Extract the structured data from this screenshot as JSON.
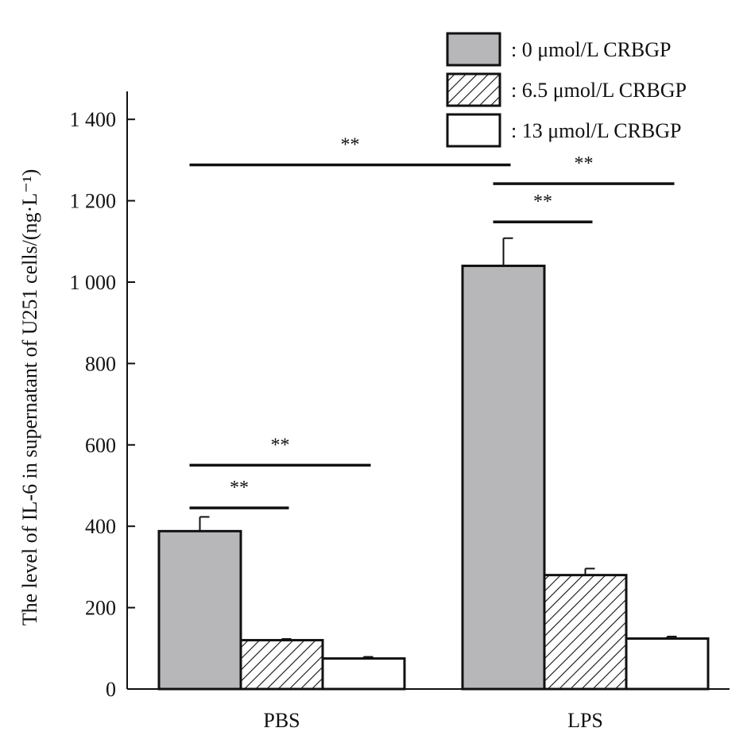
{
  "chart_data": {
    "type": "bar",
    "title": "",
    "xlabel": "",
    "ylabel": "The level of IL-6 in supernatant of U251 cells/(ng·L⁻¹)",
    "ylim": [
      0,
      1450
    ],
    "yticks": [
      0,
      200,
      400,
      600,
      800,
      1000,
      1200,
      1400
    ],
    "ytick_labels": [
      "0",
      "200",
      "400",
      "600",
      "800",
      "1 000",
      "1 200",
      "1 400"
    ],
    "categories": [
      "PBS",
      "LPS"
    ],
    "series": [
      {
        "name": ": 0 μmol/L CRBGP",
        "values": [
          388,
          1040
        ],
        "errors": [
          35,
          68
        ],
        "fill": "gray",
        "color": "#b7b7b9"
      },
      {
        "name": ": 6.5 μmol/L CRBGP",
        "values": [
          120,
          280
        ],
        "errors": [
          3,
          16
        ],
        "fill": "hatch",
        "color": "#ffffff"
      },
      {
        "name": ": 13 μmol/L CRBGP",
        "values": [
          75,
          124
        ],
        "errors": [
          4,
          5
        ],
        "fill": "white",
        "color": "#ffffff"
      }
    ],
    "significance": [
      {
        "from": [
          0,
          0
        ],
        "to": [
          0,
          1
        ],
        "y": 445,
        "label": "**"
      },
      {
        "from": [
          0,
          0
        ],
        "to": [
          0,
          2
        ],
        "y": 550,
        "label": "**"
      },
      {
        "from": [
          0,
          0
        ],
        "to": [
          1,
          0
        ],
        "y": 1288,
        "label": "**"
      },
      {
        "from": [
          1,
          0
        ],
        "to": [
          1,
          1
        ],
        "y": 1148,
        "label": "**"
      },
      {
        "from": [
          1,
          0
        ],
        "to": [
          1,
          2
        ],
        "y": 1242,
        "label": "**"
      }
    ],
    "legend_position": "top-right",
    "grid": false
  }
}
